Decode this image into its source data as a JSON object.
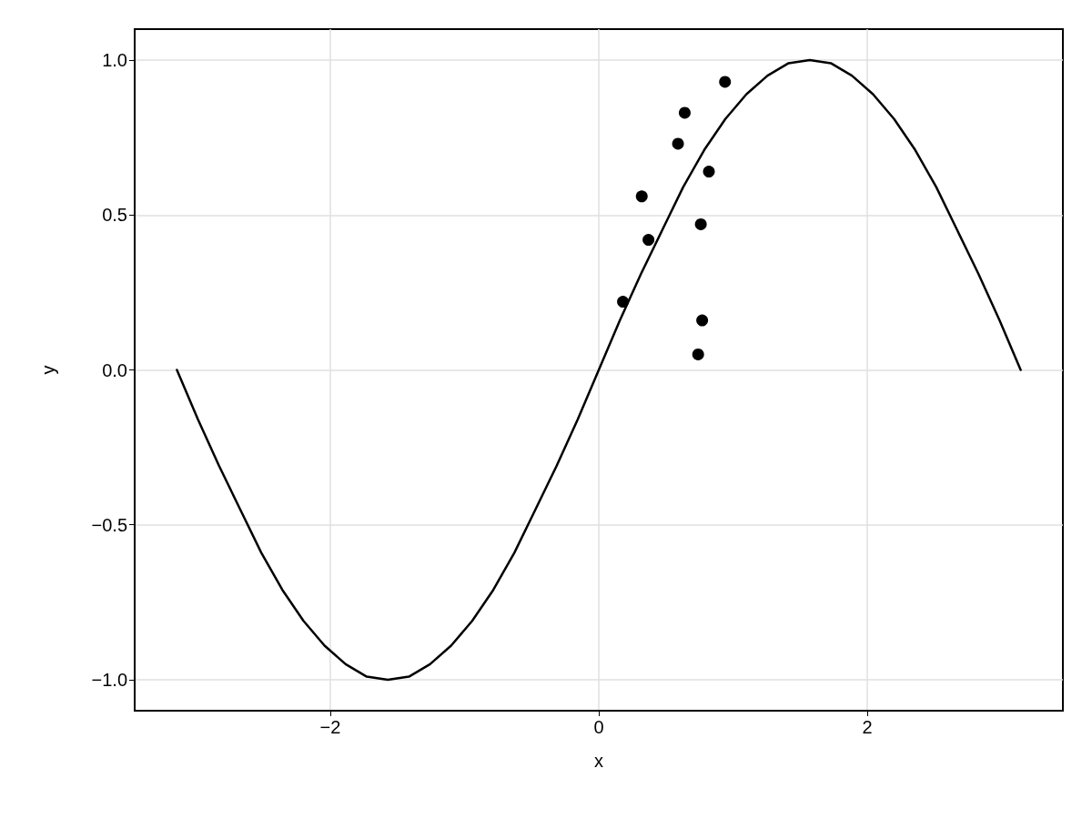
{
  "chart_data": {
    "type": "scatter",
    "xlabel": "x",
    "ylabel": "y",
    "xlim": [
      -3.456,
      3.456
    ],
    "ylim": [
      -1.1,
      1.1
    ],
    "xticks": [
      {
        "value": -2,
        "label": "−2"
      },
      0,
      2
    ],
    "yticks": [
      {
        "value": -1,
        "label": "−1.0"
      },
      {
        "value": -0.5,
        "label": "−0.5"
      },
      {
        "value": 0,
        "label": "0.0"
      },
      {
        "value": 0.5,
        "label": "0.5"
      },
      {
        "value": 1,
        "label": "1.0"
      }
    ],
    "grid": true,
    "series": [
      {
        "type": "line",
        "color": "#000000",
        "marker": "none",
        "line_style": "solid",
        "x": [
          -3.1416,
          -2.9845,
          -2.8274,
          -2.6704,
          -2.5133,
          -2.3562,
          -2.1991,
          -2.042,
          -1.885,
          -1.7279,
          -1.5708,
          -1.4137,
          -1.2566,
          -1.0996,
          -0.9425,
          -0.7854,
          -0.6283,
          -0.4712,
          -0.3142,
          -0.1571,
          0,
          0.1571,
          0.3142,
          0.4712,
          0.6283,
          0.7854,
          0.9425,
          1.0996,
          1.2566,
          1.4137,
          1.5708,
          1.7279,
          1.885,
          2.042,
          2.1991,
          2.3562,
          2.5133,
          2.6704,
          2.8274,
          2.9845,
          3.1416
        ],
        "values": [
          0,
          -0.16,
          -0.31,
          -0.45,
          -0.59,
          -0.71,
          -0.81,
          -0.89,
          -0.95,
          -0.99,
          -1,
          -0.99,
          -0.95,
          -0.89,
          -0.81,
          -0.71,
          -0.59,
          -0.45,
          -0.31,
          -0.16,
          0,
          0.16,
          0.31,
          0.45,
          0.59,
          0.71,
          0.81,
          0.89,
          0.95,
          0.99,
          1,
          0.99,
          0.95,
          0.89,
          0.81,
          0.71,
          0.59,
          0.45,
          0.31,
          0.16,
          0
        ]
      },
      {
        "color": "#000000",
        "marker": "circle",
        "x": [
          0.18,
          0.32,
          0.37,
          0.59,
          0.64,
          0.74,
          0.76,
          0.77,
          0.82,
          0.94
        ],
        "values": [
          0.22,
          0.56,
          0.42,
          0.73,
          0.83,
          0.05,
          0.47,
          0.16,
          0.64,
          0.93
        ]
      }
    ]
  }
}
